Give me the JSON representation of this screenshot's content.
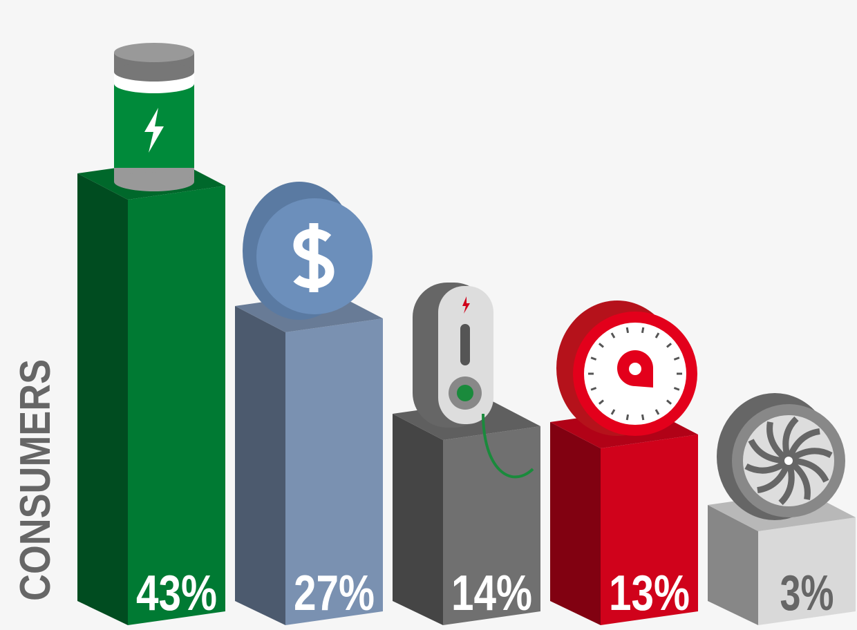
{
  "chart_data": {
    "type": "bar",
    "y_label": "CONSUMERS",
    "values": [
      43,
      27,
      14,
      13,
      3
    ],
    "value_labels": [
      "43%",
      "27%",
      "14%",
      "13%",
      "3%"
    ],
    "colors": [
      "#007a33",
      "#7a91b1",
      "#707070",
      "#d0021b",
      "#d9d9d9"
    ]
  }
}
